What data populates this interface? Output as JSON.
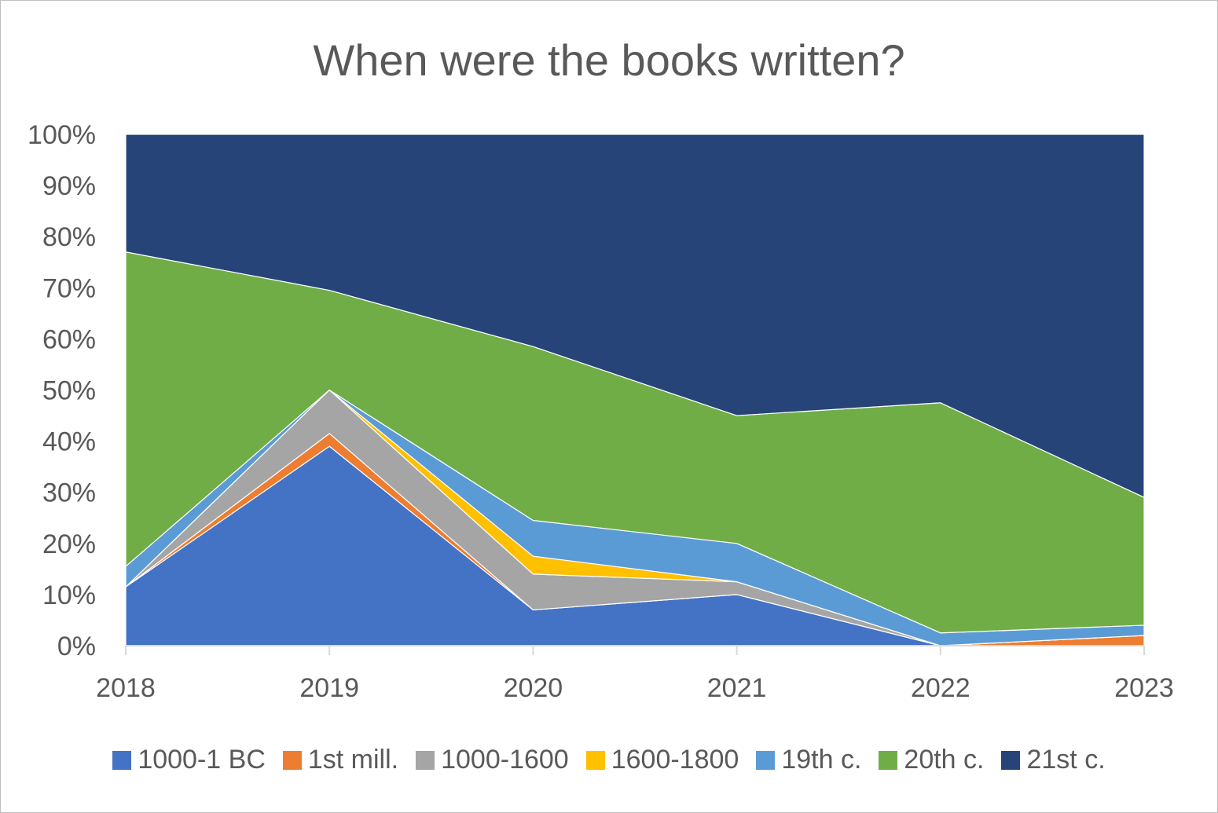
{
  "chart_data": {
    "type": "area",
    "stacked": true,
    "normalized_percent": true,
    "title": "When were the books written?",
    "xlabel": "",
    "ylabel": "",
    "categories": [
      "2018",
      "2019",
      "2020",
      "2021",
      "2022",
      "2023"
    ],
    "ylim": [
      0,
      100
    ],
    "yticks": [
      "0%",
      "10%",
      "20%",
      "30%",
      "40%",
      "50%",
      "60%",
      "70%",
      "80%",
      "90%",
      "100%"
    ],
    "legend_position": "bottom",
    "grid": false,
    "series": [
      {
        "name": "1000-1 BC",
        "color": "#4472C4",
        "values": [
          11.5,
          39,
          7,
          10,
          0,
          0
        ]
      },
      {
        "name": "1st mill.",
        "color": "#ED7D31",
        "values": [
          0,
          2.5,
          0,
          0,
          0,
          2
        ]
      },
      {
        "name": "1000-1600",
        "color": "#A5A5A5",
        "values": [
          0,
          8.5,
          7,
          2.5,
          0,
          0
        ]
      },
      {
        "name": "1600-1800",
        "color": "#FFC000",
        "values": [
          0,
          0,
          3.5,
          0,
          0,
          0
        ]
      },
      {
        "name": "19th c.",
        "color": "#5B9BD5",
        "values": [
          4,
          0,
          7,
          7.5,
          2.5,
          2
        ]
      },
      {
        "name": "20th c.",
        "color": "#70AD47",
        "values": [
          61.5,
          19.5,
          34,
          25,
          45,
          25
        ]
      },
      {
        "name": "21st c.",
        "color": "#264478",
        "values": [
          23,
          30.5,
          41.5,
          55,
          52.5,
          71
        ]
      }
    ]
  }
}
